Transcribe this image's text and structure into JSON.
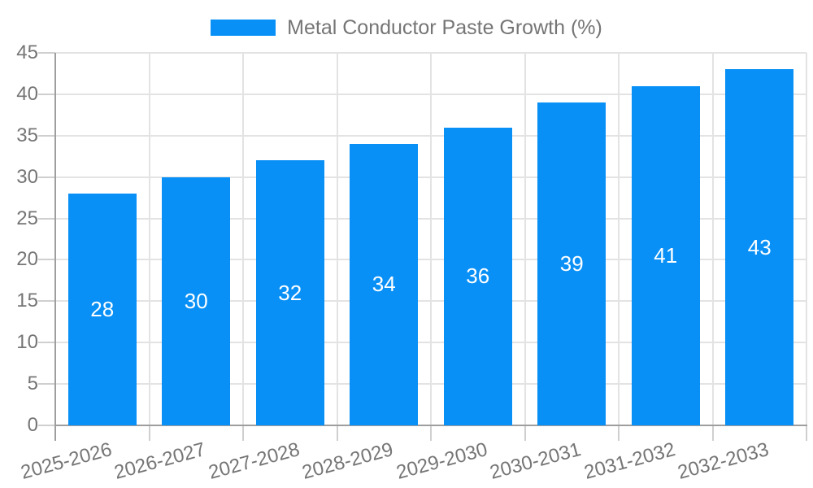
{
  "legend": {
    "label": "Metal Conductor Paste Growth (%)"
  },
  "chart_data": {
    "type": "bar",
    "title": "Metal Conductor Paste Growth (%)",
    "series_name": "Metal Conductor Paste Growth (%)",
    "categories": [
      "2025-2026",
      "2026-2027",
      "2027-2028",
      "2028-2029",
      "2029-2030",
      "2030-2031",
      "2031-2032",
      "2032-2033"
    ],
    "values": [
      28,
      30,
      32,
      34,
      36,
      39,
      41,
      43
    ],
    "value_label_position": "inside-center",
    "xlabel": "",
    "ylabel": "",
    "ylim": [
      0,
      45
    ],
    "yticks": [
      0,
      5,
      10,
      15,
      20,
      25,
      30,
      35,
      40,
      45
    ],
    "grid": "on",
    "legend_position": "top-center",
    "x_label_rotation_deg": -15
  },
  "colors": {
    "bar": "#0990f6",
    "grid": "#e3e3e3",
    "tick": "#cfcfcf",
    "axis": "#9e9e9e",
    "text": "#757575",
    "value_text": "#ffffff",
    "background": "#ffffff"
  }
}
